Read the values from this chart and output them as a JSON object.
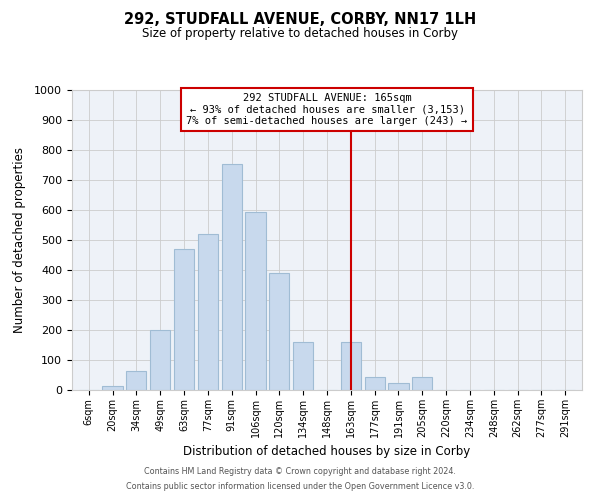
{
  "title": "292, STUDFALL AVENUE, CORBY, NN17 1LH",
  "subtitle": "Size of property relative to detached houses in Corby",
  "xlabel": "Distribution of detached houses by size in Corby",
  "ylabel": "Number of detached properties",
  "bar_labels": [
    "6sqm",
    "20sqm",
    "34sqm",
    "49sqm",
    "63sqm",
    "77sqm",
    "91sqm",
    "106sqm",
    "120sqm",
    "134sqm",
    "148sqm",
    "163sqm",
    "177sqm",
    "191sqm",
    "205sqm",
    "220sqm",
    "234sqm",
    "248sqm",
    "262sqm",
    "277sqm",
    "291sqm"
  ],
  "bar_heights": [
    0,
    15,
    65,
    200,
    470,
    520,
    755,
    595,
    390,
    160,
    0,
    160,
    45,
    25,
    45,
    0,
    0,
    0,
    0,
    0,
    0
  ],
  "bar_color": "#c8d9ed",
  "bar_edge_color": "#a0bcd4",
  "vline_index": 11,
  "vline_color": "#cc0000",
  "ylim": [
    0,
    1000
  ],
  "yticks": [
    0,
    100,
    200,
    300,
    400,
    500,
    600,
    700,
    800,
    900,
    1000
  ],
  "annotation_box_title": "292 STUDFALL AVENUE: 165sqm",
  "annotation_line1": "← 93% of detached houses are smaller (3,153)",
  "annotation_line2": "7% of semi-detached houses are larger (243) →",
  "annotation_box_edge_color": "#cc0000",
  "footer_line1": "Contains HM Land Registry data © Crown copyright and database right 2024.",
  "footer_line2": "Contains public sector information licensed under the Open Government Licence v3.0.",
  "background_color": "#eef2f8"
}
